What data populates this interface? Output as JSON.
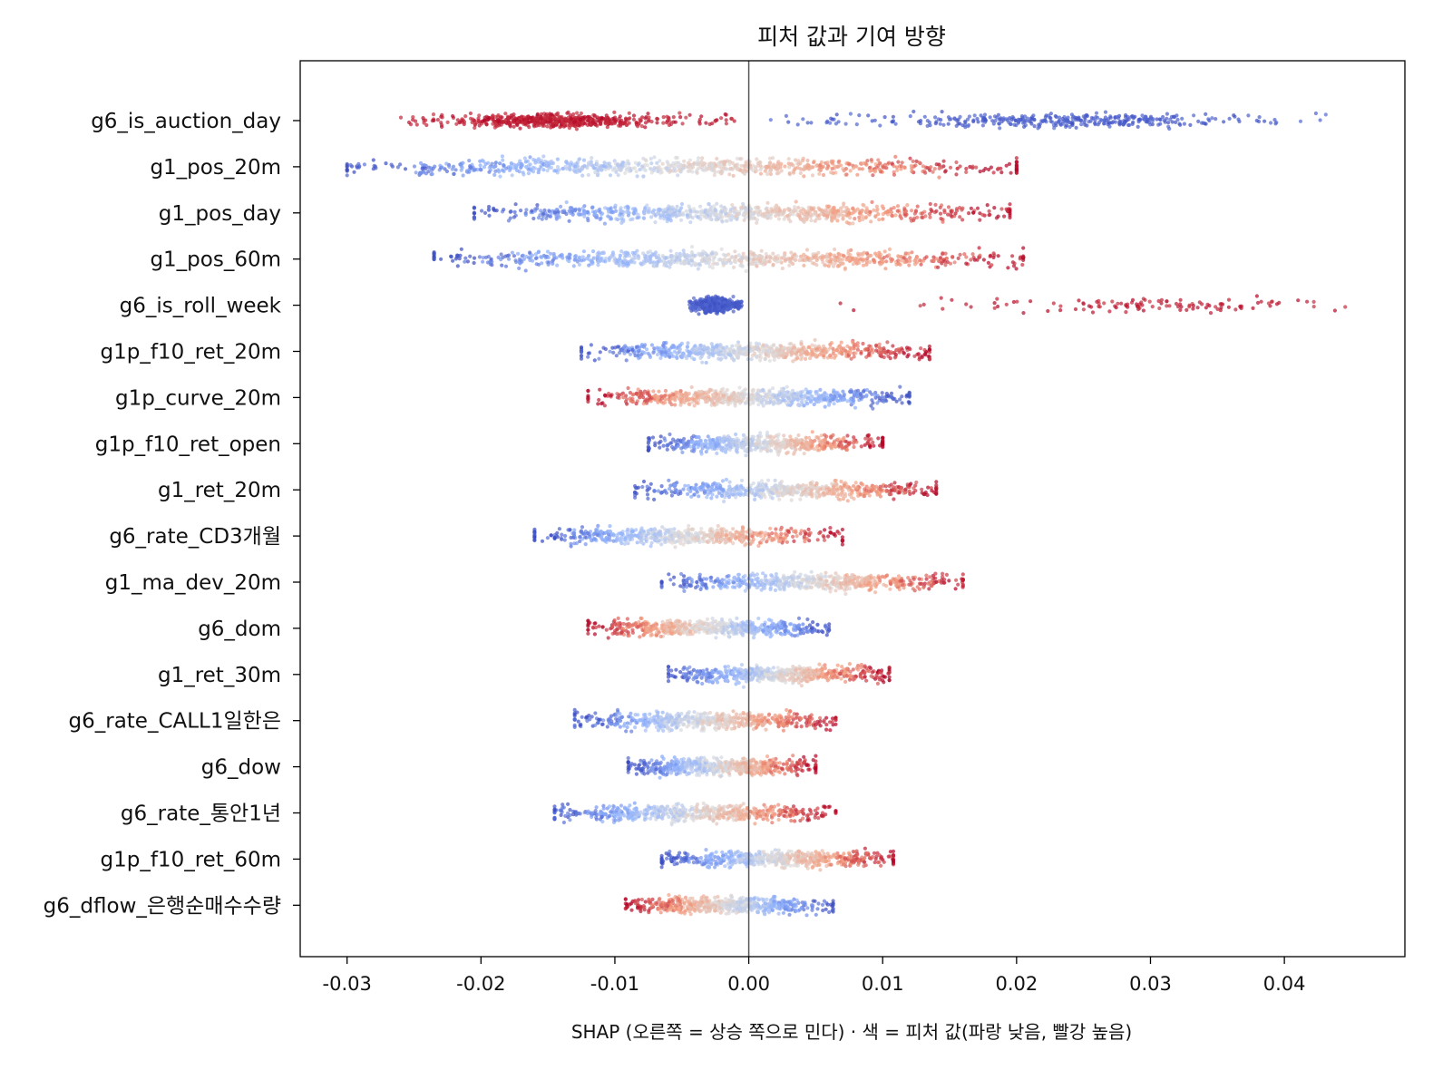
{
  "chart_data": {
    "type": "scatter",
    "subtype": "shap-beeswarm",
    "title": "피처 값과 기여 방향",
    "xlabel": "SHAP (오른쪽 = 상승 쪽으로 민다) · 색 = 피처 값(파랑 낮음, 빨강 높음)",
    "ylabel": "",
    "xlim": [
      -0.0335,
      0.049
    ],
    "xticks": [
      -0.03,
      -0.02,
      -0.01,
      0.0,
      0.01,
      0.02,
      0.03,
      0.04
    ],
    "xtick_labels": [
      "-0.03",
      "-0.02",
      "-0.01",
      "0.00",
      "0.01",
      "0.02",
      "0.03",
      "0.04"
    ],
    "zero_line": true,
    "grid": false,
    "legend": "none",
    "colormap": {
      "name": "coolwarm",
      "low": "#3b4cc0",
      "mid": "#dddddd",
      "high": "#b40426"
    },
    "features": [
      {
        "name": "g6_is_auction_day",
        "kind": "binary",
        "groups": [
          {
            "value": "high",
            "range": [
              -0.026,
              -0.001
            ],
            "center": -0.0145,
            "n": 600
          },
          {
            "value": "low",
            "range": [
              0.0015,
              0.0435
            ],
            "center": 0.024,
            "n": 360
          }
        ]
      },
      {
        "name": "g1_pos_20m",
        "kind": "continuous",
        "range": [
          -0.03,
          0.02
        ],
        "direction": "positive",
        "n": 800
      },
      {
        "name": "g1_pos_day",
        "kind": "continuous",
        "range": [
          -0.0205,
          0.0195
        ],
        "direction": "positive",
        "n": 800
      },
      {
        "name": "g1_pos_60m",
        "kind": "continuous",
        "range": [
          -0.0235,
          0.0205
        ],
        "direction": "positive",
        "n": 800
      },
      {
        "name": "g6_is_roll_week",
        "kind": "binary",
        "groups": [
          {
            "value": "low",
            "range": [
              -0.0045,
              -0.0005
            ],
            "center": -0.0025,
            "n": 600
          },
          {
            "value": "high",
            "range": [
              0.0065,
              0.0455
            ],
            "center": 0.03,
            "n": 120
          }
        ]
      },
      {
        "name": "g1p_f10_ret_20m",
        "kind": "continuous",
        "range": [
          -0.0125,
          0.0135
        ],
        "direction": "positive",
        "n": 700
      },
      {
        "name": "g1p_curve_20m",
        "kind": "continuous",
        "range": [
          -0.012,
          0.012
        ],
        "direction": "negative",
        "n": 700
      },
      {
        "name": "g1p_f10_ret_open",
        "kind": "continuous",
        "range": [
          -0.0075,
          0.01
        ],
        "direction": "positive",
        "n": 600
      },
      {
        "name": "g1_ret_20m",
        "kind": "continuous",
        "range": [
          -0.0085,
          0.014
        ],
        "direction": "positive",
        "n": 600
      },
      {
        "name": "g6_rate_CD3개월",
        "kind": "continuous",
        "range": [
          -0.016,
          0.007
        ],
        "direction": "positive",
        "n": 600
      },
      {
        "name": "g1_ma_dev_20m",
        "kind": "continuous",
        "range": [
          -0.0065,
          0.016
        ],
        "direction": "positive",
        "n": 600
      },
      {
        "name": "g6_dom",
        "kind": "continuous",
        "range": [
          -0.012,
          0.006
        ],
        "direction": "negative",
        "n": 600
      },
      {
        "name": "g1_ret_30m",
        "kind": "continuous",
        "range": [
          -0.006,
          0.0105
        ],
        "direction": "positive",
        "n": 600
      },
      {
        "name": "g6_rate_CALL1일한은",
        "kind": "continuous",
        "range": [
          -0.013,
          0.0065
        ],
        "direction": "positive",
        "n": 600
      },
      {
        "name": "g6_dow",
        "kind": "continuous",
        "range": [
          -0.009,
          0.005
        ],
        "direction": "positive",
        "n": 600
      },
      {
        "name": "g6_rate_통안1년",
        "kind": "continuous",
        "range": [
          -0.0145,
          0.0065
        ],
        "direction": "positive",
        "n": 600
      },
      {
        "name": "g1p_f10_ret_60m",
        "kind": "continuous",
        "range": [
          -0.0065,
          0.0108
        ],
        "direction": "positive",
        "n": 600
      },
      {
        "name": "g6_dflow_은행순매수수량",
        "kind": "continuous",
        "range": [
          -0.0092,
          0.0063
        ],
        "direction": "negative",
        "n": 600
      }
    ]
  }
}
